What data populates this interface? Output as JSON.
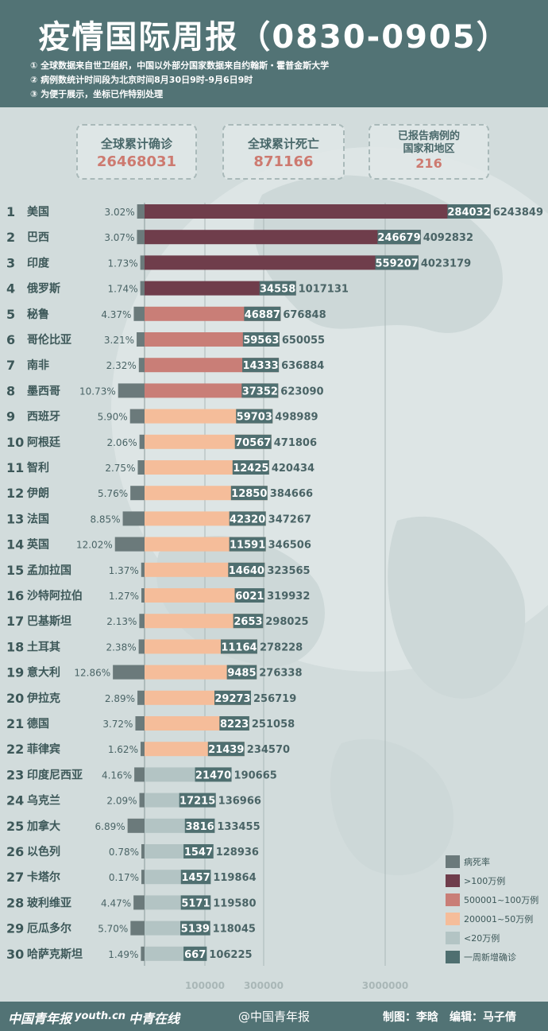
{
  "header": {
    "title": "疫情国际周报（0830-0905）",
    "notes": [
      "① 全球数据来自世卫组织，中国以外部分国家数据来自约翰斯・霍普金斯大学",
      "② 病例数统计时间段为北京时间8月30日9时-9月6日9时",
      "③ 为便于展示，坐标已作特别处理"
    ]
  },
  "stats": [
    {
      "label": "全球累计确诊",
      "value": "26468031"
    },
    {
      "label": "全球累计死亡",
      "value": "871166"
    },
    {
      "label_lines": [
        "已报告病例的",
        "国家和地区"
      ],
      "value": "216"
    }
  ],
  "colors": {
    "death_rate": "#6b7a7b",
    "over_1m": "#6f3d4b",
    "500k_1m": "#c97e77",
    "200k_500k": "#f5bd9a",
    "under_200k": "#b3c4c4",
    "weekly_new": "#4f6f70"
  },
  "chart_data": {
    "type": "bar",
    "categories": [
      "美国",
      "巴西",
      "印度",
      "俄罗斯",
      "秘鲁",
      "哥伦比亚",
      "南非",
      "墨西哥",
      "西班牙",
      "阿根廷",
      "智利",
      "伊朗",
      "法国",
      "英国",
      "孟加拉国",
      "沙特阿拉伯",
      "巴基斯坦",
      "土耳其",
      "意大利",
      "伊拉克",
      "德国",
      "菲律宾",
      "印度尼西亚",
      "乌克兰",
      "加拿大",
      "以色列",
      "卡塔尔",
      "玻利维亚",
      "厄瓜多尔",
      "哈萨克斯坦"
    ],
    "cumulative": [
      6243849,
      4092832,
      4023179,
      1017131,
      676848,
      650055,
      636884,
      623090,
      498989,
      471806,
      420434,
      384666,
      347267,
      346506,
      323565,
      319932,
      298025,
      278228,
      276338,
      256719,
      251058,
      234570,
      190665,
      136966,
      133455,
      128936,
      119864,
      119580,
      118045,
      106225
    ],
    "weekly_new": [
      284032,
      246679,
      559207,
      34558,
      46887,
      59563,
      14333,
      37352,
      59703,
      70567,
      12425,
      12850,
      42320,
      11591,
      14640,
      6021,
      2653,
      11164,
      9485,
      29273,
      8223,
      21439,
      21470,
      17215,
      3816,
      1547,
      1457,
      5171,
      5139,
      667
    ],
    "death_rate": [
      "3.02%",
      "3.07%",
      "1.73%",
      "1.74%",
      "4.37%",
      "3.21%",
      "2.32%",
      "10.73%",
      "5.90%",
      "2.06%",
      "2.75%",
      "5.76%",
      "8.85%",
      "12.02%",
      "1.37%",
      "1.27%",
      "2.13%",
      "2.38%",
      "12.86%",
      "2.89%",
      "3.72%",
      "1.62%",
      "4.16%",
      "2.09%",
      "6.89%",
      "0.78%",
      "0.17%",
      "4.47%",
      "5.70%",
      "1.49%"
    ],
    "x_ticks": [
      "100000",
      "300000",
      "3000000"
    ],
    "legend": [
      {
        "key": "death_rate",
        "label": "病死率"
      },
      {
        "key": "over_1m",
        "label": ">100万例"
      },
      {
        "key": "500k_1m",
        "label": "500001~100万例"
      },
      {
        "key": "200k_500k",
        "label": "200001~50万例"
      },
      {
        "key": "under_200k",
        "label": "<20万例"
      },
      {
        "key": "weekly_new",
        "label": "一周新增确诊"
      }
    ]
  },
  "footer": {
    "logos": [
      "中国青年报",
      "youth.cn",
      "中青在线"
    ],
    "weibo": "@中国青年报",
    "credits": "制图：李晗　编辑：马子倩"
  }
}
